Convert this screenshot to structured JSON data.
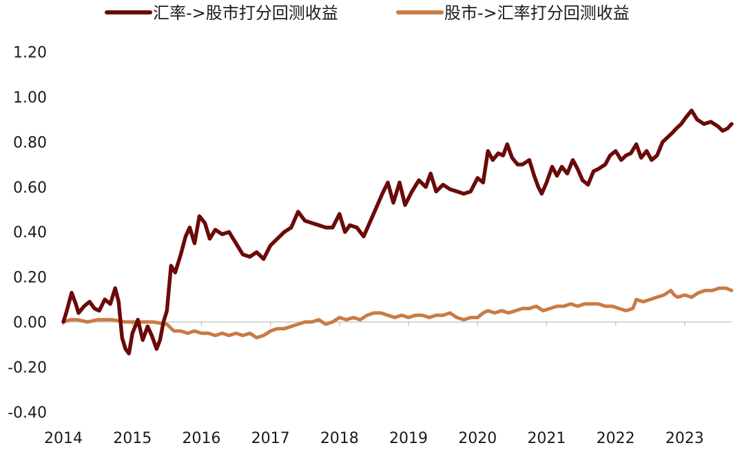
{
  "chart_data": {
    "type": "line",
    "title": "",
    "xlabel": "",
    "ylabel": "",
    "x_ticks": [
      "2014",
      "2015",
      "2016",
      "2017",
      "2018",
      "2019",
      "2020",
      "2021",
      "2022",
      "2023"
    ],
    "y_ticks": [
      "1.20",
      "1.00",
      "0.80",
      "0.60",
      "0.40",
      "0.20",
      "0.00",
      "-0.20",
      "-0.40"
    ],
    "ylim": [
      -0.4,
      1.2
    ],
    "xlim": [
      2014.0,
      2023.68
    ],
    "grid": false,
    "legend_position": "top",
    "series": [
      {
        "name": "汇率->股市打分回测收益",
        "color": "#6b0a0a",
        "points": [
          [
            2014.0,
            0.0
          ],
          [
            2014.05,
            0.05
          ],
          [
            2014.12,
            0.13
          ],
          [
            2014.18,
            0.08
          ],
          [
            2014.22,
            0.04
          ],
          [
            2014.3,
            0.07
          ],
          [
            2014.38,
            0.09
          ],
          [
            2014.45,
            0.06
          ],
          [
            2014.52,
            0.05
          ],
          [
            2014.6,
            0.1
          ],
          [
            2014.68,
            0.08
          ],
          [
            2014.75,
            0.15
          ],
          [
            2014.8,
            0.09
          ],
          [
            2014.85,
            -0.07
          ],
          [
            2014.9,
            -0.12
          ],
          [
            2014.95,
            -0.14
          ],
          [
            2015.0,
            -0.05
          ],
          [
            2015.08,
            0.01
          ],
          [
            2015.15,
            -0.08
          ],
          [
            2015.22,
            -0.02
          ],
          [
            2015.28,
            -0.06
          ],
          [
            2015.35,
            -0.12
          ],
          [
            2015.4,
            -0.08
          ],
          [
            2015.45,
            0.0
          ],
          [
            2015.5,
            0.05
          ],
          [
            2015.56,
            0.25
          ],
          [
            2015.62,
            0.22
          ],
          [
            2015.7,
            0.3
          ],
          [
            2015.77,
            0.38
          ],
          [
            2015.83,
            0.42
          ],
          [
            2015.9,
            0.35
          ],
          [
            2015.97,
            0.47
          ],
          [
            2016.05,
            0.44
          ],
          [
            2016.12,
            0.37
          ],
          [
            2016.2,
            0.41
          ],
          [
            2016.3,
            0.39
          ],
          [
            2016.4,
            0.4
          ],
          [
            2016.5,
            0.35
          ],
          [
            2016.6,
            0.3
          ],
          [
            2016.7,
            0.29
          ],
          [
            2016.8,
            0.31
          ],
          [
            2016.9,
            0.28
          ],
          [
            2017.0,
            0.34
          ],
          [
            2017.1,
            0.37
          ],
          [
            2017.2,
            0.4
          ],
          [
            2017.3,
            0.42
          ],
          [
            2017.4,
            0.49
          ],
          [
            2017.5,
            0.45
          ],
          [
            2017.6,
            0.44
          ],
          [
            2017.7,
            0.43
          ],
          [
            2017.8,
            0.42
          ],
          [
            2017.9,
            0.42
          ],
          [
            2018.0,
            0.48
          ],
          [
            2018.08,
            0.4
          ],
          [
            2018.15,
            0.43
          ],
          [
            2018.25,
            0.42
          ],
          [
            2018.35,
            0.38
          ],
          [
            2018.45,
            0.45
          ],
          [
            2018.55,
            0.52
          ],
          [
            2018.62,
            0.57
          ],
          [
            2018.7,
            0.62
          ],
          [
            2018.78,
            0.53
          ],
          [
            2018.87,
            0.62
          ],
          [
            2018.95,
            0.52
          ],
          [
            2019.05,
            0.58
          ],
          [
            2019.15,
            0.63
          ],
          [
            2019.25,
            0.6
          ],
          [
            2019.32,
            0.66
          ],
          [
            2019.4,
            0.58
          ],
          [
            2019.5,
            0.61
          ],
          [
            2019.6,
            0.59
          ],
          [
            2019.7,
            0.58
          ],
          [
            2019.8,
            0.57
          ],
          [
            2019.9,
            0.58
          ],
          [
            2020.0,
            0.64
          ],
          [
            2020.08,
            0.62
          ],
          [
            2020.15,
            0.76
          ],
          [
            2020.22,
            0.72
          ],
          [
            2020.3,
            0.75
          ],
          [
            2020.37,
            0.74
          ],
          [
            2020.43,
            0.79
          ],
          [
            2020.5,
            0.73
          ],
          [
            2020.58,
            0.7
          ],
          [
            2020.65,
            0.7
          ],
          [
            2020.75,
            0.72
          ],
          [
            2020.82,
            0.65
          ],
          [
            2020.88,
            0.6
          ],
          [
            2020.93,
            0.57
          ],
          [
            2021.0,
            0.62
          ],
          [
            2021.08,
            0.69
          ],
          [
            2021.15,
            0.65
          ],
          [
            2021.22,
            0.69
          ],
          [
            2021.3,
            0.66
          ],
          [
            2021.38,
            0.72
          ],
          [
            2021.45,
            0.68
          ],
          [
            2021.52,
            0.63
          ],
          [
            2021.6,
            0.61
          ],
          [
            2021.68,
            0.67
          ],
          [
            2021.75,
            0.68
          ],
          [
            2021.85,
            0.7
          ],
          [
            2021.92,
            0.74
          ],
          [
            2022.0,
            0.76
          ],
          [
            2022.08,
            0.72
          ],
          [
            2022.15,
            0.74
          ],
          [
            2022.22,
            0.75
          ],
          [
            2022.3,
            0.79
          ],
          [
            2022.37,
            0.73
          ],
          [
            2022.45,
            0.76
          ],
          [
            2022.52,
            0.72
          ],
          [
            2022.6,
            0.74
          ],
          [
            2022.68,
            0.8
          ],
          [
            2022.75,
            0.82
          ],
          [
            2022.82,
            0.84
          ],
          [
            2022.88,
            0.86
          ],
          [
            2022.95,
            0.88
          ],
          [
            2023.02,
            0.91
          ],
          [
            2023.1,
            0.94
          ],
          [
            2023.18,
            0.9
          ],
          [
            2023.28,
            0.88
          ],
          [
            2023.38,
            0.89
          ],
          [
            2023.48,
            0.87
          ],
          [
            2023.55,
            0.85
          ],
          [
            2023.62,
            0.86
          ],
          [
            2023.68,
            0.88
          ]
        ]
      },
      {
        "name": "股市->汇率打分回测收益",
        "color": "#c97b44",
        "points": [
          [
            2014.0,
            0.0
          ],
          [
            2014.1,
            0.01
          ],
          [
            2014.2,
            0.01
          ],
          [
            2014.35,
            0.0
          ],
          [
            2014.5,
            0.01
          ],
          [
            2014.7,
            0.01
          ],
          [
            2014.9,
            0.0
          ],
          [
            2015.1,
            0.0
          ],
          [
            2015.3,
            0.0
          ],
          [
            2015.5,
            -0.01
          ],
          [
            2015.6,
            -0.04
          ],
          [
            2015.7,
            -0.04
          ],
          [
            2015.8,
            -0.05
          ],
          [
            2015.9,
            -0.04
          ],
          [
            2016.0,
            -0.05
          ],
          [
            2016.1,
            -0.05
          ],
          [
            2016.2,
            -0.06
          ],
          [
            2016.3,
            -0.05
          ],
          [
            2016.4,
            -0.06
          ],
          [
            2016.5,
            -0.05
          ],
          [
            2016.6,
            -0.06
          ],
          [
            2016.7,
            -0.05
          ],
          [
            2016.8,
            -0.07
          ],
          [
            2016.9,
            -0.06
          ],
          [
            2017.0,
            -0.04
          ],
          [
            2017.1,
            -0.03
          ],
          [
            2017.2,
            -0.03
          ],
          [
            2017.3,
            -0.02
          ],
          [
            2017.4,
            -0.01
          ],
          [
            2017.5,
            0.0
          ],
          [
            2017.6,
            0.0
          ],
          [
            2017.7,
            0.01
          ],
          [
            2017.8,
            -0.01
          ],
          [
            2017.9,
            0.0
          ],
          [
            2018.0,
            0.02
          ],
          [
            2018.1,
            0.01
          ],
          [
            2018.2,
            0.02
          ],
          [
            2018.3,
            0.01
          ],
          [
            2018.4,
            0.03
          ],
          [
            2018.5,
            0.04
          ],
          [
            2018.6,
            0.04
          ],
          [
            2018.7,
            0.03
          ],
          [
            2018.8,
            0.02
          ],
          [
            2018.9,
            0.03
          ],
          [
            2019.0,
            0.02
          ],
          [
            2019.1,
            0.03
          ],
          [
            2019.2,
            0.03
          ],
          [
            2019.3,
            0.02
          ],
          [
            2019.4,
            0.03
          ],
          [
            2019.5,
            0.03
          ],
          [
            2019.6,
            0.04
          ],
          [
            2019.7,
            0.02
          ],
          [
            2019.8,
            0.01
          ],
          [
            2019.9,
            0.02
          ],
          [
            2020.0,
            0.02
          ],
          [
            2020.08,
            0.04
          ],
          [
            2020.15,
            0.05
          ],
          [
            2020.25,
            0.04
          ],
          [
            2020.35,
            0.05
          ],
          [
            2020.45,
            0.04
          ],
          [
            2020.55,
            0.05
          ],
          [
            2020.65,
            0.06
          ],
          [
            2020.75,
            0.06
          ],
          [
            2020.85,
            0.07
          ],
          [
            2020.95,
            0.05
          ],
          [
            2021.05,
            0.06
          ],
          [
            2021.15,
            0.07
          ],
          [
            2021.25,
            0.07
          ],
          [
            2021.35,
            0.08
          ],
          [
            2021.45,
            0.07
          ],
          [
            2021.55,
            0.08
          ],
          [
            2021.65,
            0.08
          ],
          [
            2021.75,
            0.08
          ],
          [
            2021.85,
            0.07
          ],
          [
            2021.95,
            0.07
          ],
          [
            2022.05,
            0.06
          ],
          [
            2022.15,
            0.05
          ],
          [
            2022.25,
            0.06
          ],
          [
            2022.3,
            0.1
          ],
          [
            2022.4,
            0.09
          ],
          [
            2022.5,
            0.1
          ],
          [
            2022.6,
            0.11
          ],
          [
            2022.7,
            0.12
          ],
          [
            2022.8,
            0.14
          ],
          [
            2022.85,
            0.12
          ],
          [
            2022.9,
            0.11
          ],
          [
            2023.0,
            0.12
          ],
          [
            2023.1,
            0.11
          ],
          [
            2023.2,
            0.13
          ],
          [
            2023.3,
            0.14
          ],
          [
            2023.4,
            0.14
          ],
          [
            2023.5,
            0.15
          ],
          [
            2023.6,
            0.15
          ],
          [
            2023.68,
            0.14
          ]
        ]
      }
    ]
  }
}
